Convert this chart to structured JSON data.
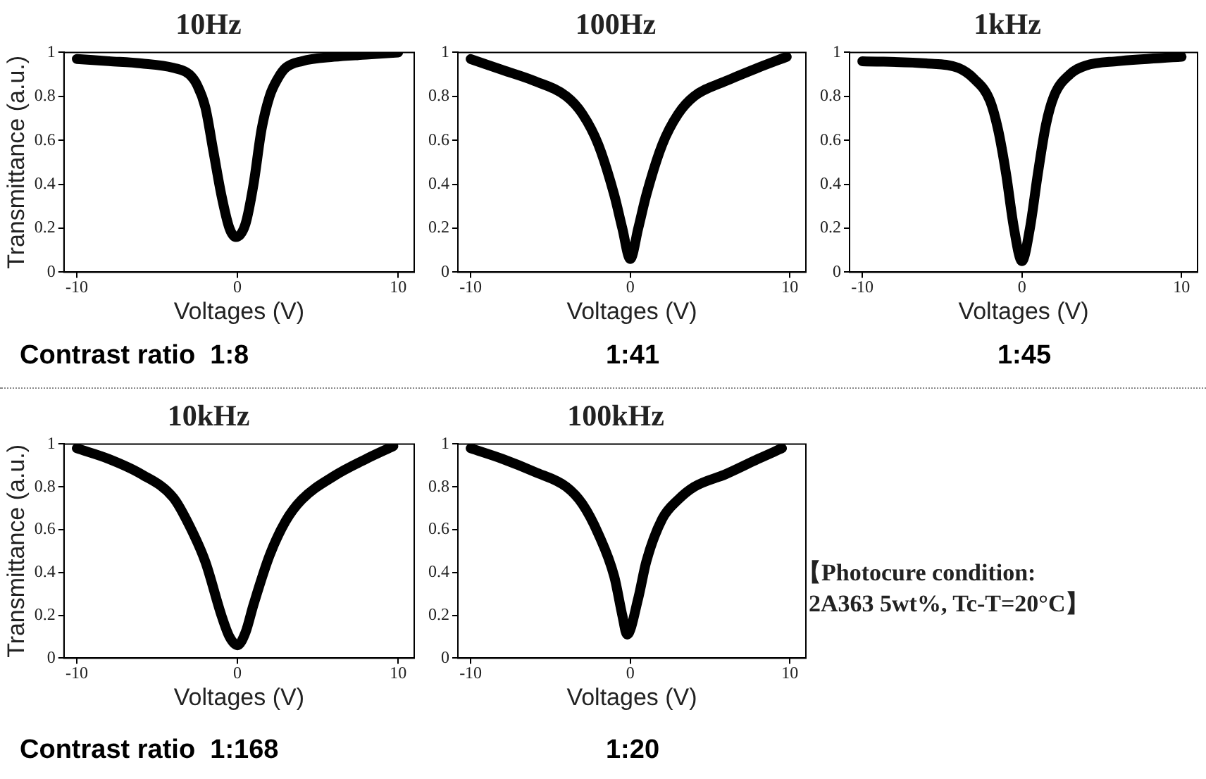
{
  "chart_data": [
    {
      "type": "line",
      "title": "10Hz",
      "xlabel": "Voltages (V)",
      "ylabel": "Transmittance (a.u.)",
      "x": [
        -10,
        -8,
        -6,
        -4,
        -3,
        -2.5,
        -2,
        -1.5,
        -1,
        -0.5,
        -0.1,
        0.5,
        1,
        1.5,
        2,
        2.5,
        3,
        4,
        6,
        8,
        10
      ],
      "series": [
        {
          "color": "#000000",
          "values": [
            0.97,
            0.96,
            0.95,
            0.93,
            0.9,
            0.85,
            0.75,
            0.55,
            0.35,
            0.2,
            0.16,
            0.22,
            0.4,
            0.65,
            0.8,
            0.88,
            0.93,
            0.96,
            0.98,
            0.99,
            1.0
          ]
        }
      ],
      "xlim": [
        -10.8,
        11
      ],
      "ylim": [
        0,
        1
      ],
      "xticks": [
        -10,
        0,
        10
      ],
      "yticks": [
        0,
        0.2,
        0.4,
        0.6,
        0.8,
        1
      ],
      "grid": false,
      "legend": false,
      "annotations": [
        "Contrast ratio  1:8"
      ]
    },
    {
      "type": "line",
      "title": "100Hz",
      "xlabel": "Voltages (V)",
      "x": [
        -10,
        -8,
        -6,
        -4,
        -3,
        -2,
        -1,
        -0.5,
        0,
        0.5,
        1,
        2,
        3,
        4,
        6,
        8,
        9.8
      ],
      "series": [
        {
          "color": "#000000",
          "values": [
            0.97,
            0.92,
            0.87,
            0.8,
            0.72,
            0.58,
            0.35,
            0.2,
            0.06,
            0.2,
            0.35,
            0.58,
            0.72,
            0.8,
            0.87,
            0.93,
            0.98
          ]
        }
      ],
      "xlim": [
        -10.8,
        11
      ],
      "ylim": [
        0,
        1
      ],
      "xticks": [
        -10,
        0,
        10
      ],
      "yticks": [
        0,
        0.2,
        0.4,
        0.6,
        0.8,
        1
      ],
      "grid": false,
      "legend": false,
      "annotations": [
        "1:41"
      ]
    },
    {
      "type": "line",
      "title": "1kHz",
      "xlabel": "Voltages (V)",
      "x": [
        -10,
        -6,
        -4,
        -3,
        -2,
        -1.5,
        -1,
        -0.5,
        0,
        0.5,
        1,
        1.5,
        2,
        3,
        4,
        6,
        10
      ],
      "series": [
        {
          "color": "#000000",
          "values": [
            0.96,
            0.95,
            0.93,
            0.88,
            0.78,
            0.65,
            0.45,
            0.2,
            0.05,
            0.2,
            0.45,
            0.67,
            0.8,
            0.9,
            0.94,
            0.96,
            0.98
          ]
        }
      ],
      "xlim": [
        -10.8,
        11
      ],
      "ylim": [
        0,
        1
      ],
      "xticks": [
        -10,
        0,
        10
      ],
      "yticks": [
        0,
        0.2,
        0.4,
        0.6,
        0.8,
        1
      ],
      "grid": false,
      "legend": false,
      "annotations": [
        "1:45"
      ]
    },
    {
      "type": "line",
      "title": "10kHz",
      "xlabel": "Voltages (V)",
      "ylabel": "Transmittance (a.u.)",
      "x": [
        -10,
        -8,
        -6,
        -4,
        -3,
        -2,
        -1,
        -0.5,
        0,
        0.5,
        1,
        2,
        3,
        4,
        6,
        8,
        9.7
      ],
      "series": [
        {
          "color": "#000000",
          "values": [
            0.98,
            0.93,
            0.86,
            0.75,
            0.62,
            0.45,
            0.2,
            0.1,
            0.06,
            0.12,
            0.25,
            0.48,
            0.64,
            0.74,
            0.85,
            0.93,
            0.99
          ]
        }
      ],
      "xlim": [
        -10.8,
        11
      ],
      "ylim": [
        0,
        1
      ],
      "xticks": [
        -10,
        0,
        10
      ],
      "yticks": [
        0,
        0.2,
        0.4,
        0.6,
        0.8,
        1
      ],
      "grid": false,
      "legend": false,
      "annotations": [
        "Contrast ratio  1:168"
      ]
    },
    {
      "type": "line",
      "title": "100kHz",
      "xlabel": "Voltages (V)",
      "x": [
        -10,
        -8,
        -6,
        -4,
        -3,
        -2,
        -1,
        -0.5,
        -0.2,
        0.5,
        1,
        2,
        3,
        4,
        6,
        8,
        9.5
      ],
      "series": [
        {
          "color": "#000000",
          "values": [
            0.98,
            0.93,
            0.87,
            0.8,
            0.72,
            0.58,
            0.38,
            0.2,
            0.11,
            0.28,
            0.45,
            0.65,
            0.74,
            0.8,
            0.86,
            0.93,
            0.98
          ]
        }
      ],
      "xlim": [
        -10.8,
        11
      ],
      "ylim": [
        0,
        1
      ],
      "xticks": [
        -10,
        0,
        10
      ],
      "yticks": [
        0,
        0.2,
        0.4,
        0.6,
        0.8,
        1
      ],
      "grid": false,
      "legend": false,
      "annotations": [
        "1:20"
      ]
    },
    {
      "type": "other",
      "annotations": [
        "【Photocure condition:",
        "2A363 5wt%, Tc-T=20°C】"
      ]
    }
  ]
}
